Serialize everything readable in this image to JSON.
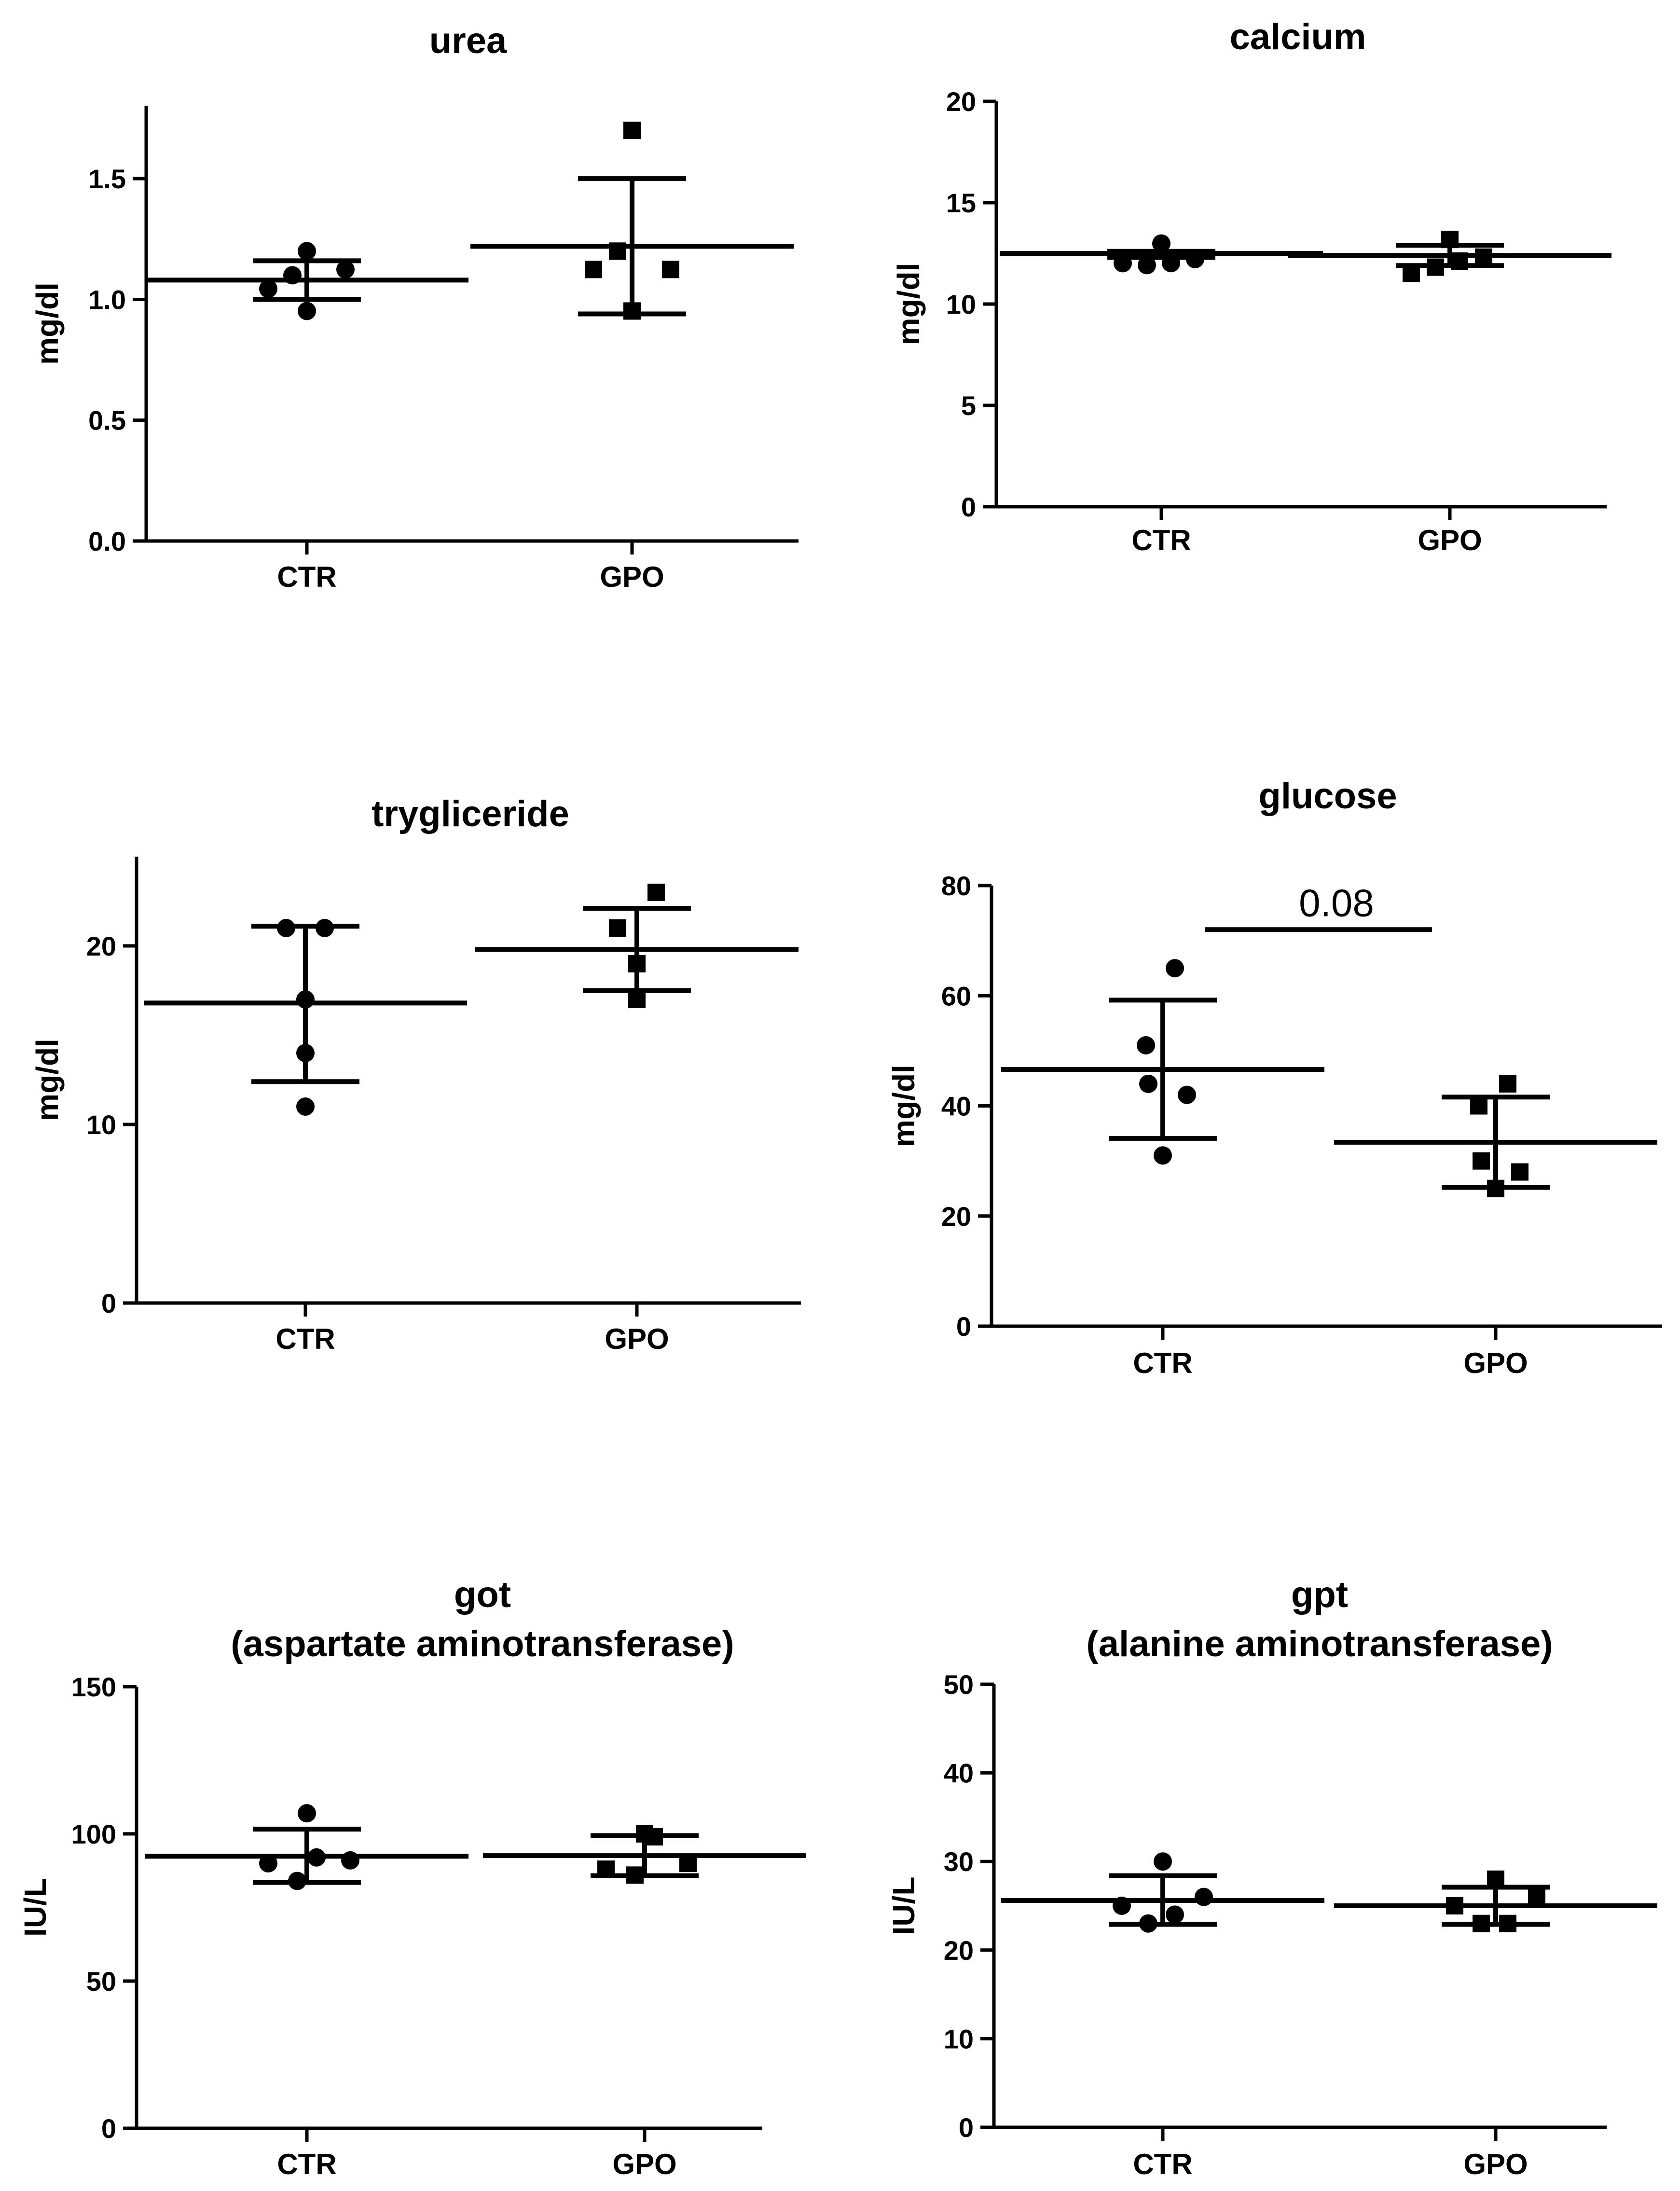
{
  "figure": {
    "background": "#ffffff",
    "marker_color": "#000000"
  },
  "chart_data": [
    {
      "type": "scatter",
      "title": "urea",
      "title_lines": [
        "urea"
      ],
      "ylabel": "mg/dl",
      "ylim": [
        0,
        1.8
      ],
      "yticks": [
        "0.0",
        "0.5",
        "1.0",
        "1.5"
      ],
      "ytick_values": [
        0,
        0.5,
        1.0,
        1.5
      ],
      "categories": [
        "CTR",
        "GPO"
      ],
      "series": [
        {
          "name": "CTR",
          "marker": "circle",
          "values": [
            1.0,
            1.02,
            1.1,
            1.1,
            1.2
          ],
          "mean": 1.08,
          "sd_low": 1.0,
          "sd_high": 1.16
        },
        {
          "name": "GPO",
          "marker": "square",
          "values": [
            1.0,
            1.1,
            1.1,
            1.2,
            1.7
          ],
          "mean": 1.22,
          "sd_low": 0.94,
          "sd_high": 1.5
        }
      ]
    },
    {
      "type": "scatter",
      "title": "calcium",
      "title_lines": [
        "calcium"
      ],
      "ylabel": "mg/dl",
      "ylim": [
        0,
        20
      ],
      "yticks": [
        "0",
        "5",
        "10",
        "15",
        "20"
      ],
      "ytick_values": [
        0,
        5,
        10,
        15,
        20
      ],
      "categories": [
        "CTR",
        "GPO"
      ],
      "series": [
        {
          "name": "CTR",
          "marker": "circle",
          "values": [
            12.3,
            12.3,
            12.4,
            12.5,
            12.7
          ],
          "mean": 12.5,
          "sd_low": 12.3,
          "sd_high": 12.6
        },
        {
          "name": "GPO",
          "marker": "square",
          "values": [
            11.8,
            12.2,
            12.5,
            12.6,
            12.9
          ],
          "mean": 12.4,
          "sd_low": 11.9,
          "sd_high": 12.9
        }
      ]
    },
    {
      "type": "scatter",
      "title": "trygliceride",
      "title_lines": [
        "trygliceride"
      ],
      "ylabel": "mg/dl",
      "ylim": [
        0,
        25
      ],
      "yticks": [
        "0",
        "10",
        "20"
      ],
      "ytick_values": [
        0,
        10,
        20
      ],
      "categories": [
        "CTR",
        "GPO"
      ],
      "series": [
        {
          "name": "CTR",
          "marker": "circle",
          "values": [
            11,
            14,
            17,
            21,
            21
          ],
          "mean": 16.8,
          "sd_low": 12.4,
          "sd_high": 21.1
        },
        {
          "name": "GPO",
          "marker": "square",
          "values": [
            17,
            19,
            19,
            21,
            23
          ],
          "mean": 19.8,
          "sd_low": 17.5,
          "sd_high": 22.1
        }
      ]
    },
    {
      "type": "scatter",
      "title": "glucose",
      "title_lines": [
        "glucose"
      ],
      "ylabel": "mg/dl",
      "ylim": [
        0,
        80
      ],
      "yticks": [
        "0",
        "20",
        "40",
        "60",
        "80"
      ],
      "ytick_values": [
        0,
        20,
        40,
        60,
        80
      ],
      "categories": [
        "CTR",
        "GPO"
      ],
      "annotation": {
        "text": "0.08",
        "y": 72
      },
      "series": [
        {
          "name": "CTR",
          "marker": "circle",
          "values": [
            31,
            42,
            44,
            51,
            65
          ],
          "mean": 46.6,
          "sd_low": 34.1,
          "sd_high": 59.2
        },
        {
          "name": "GPO",
          "marker": "square",
          "values": [
            25,
            28,
            30,
            40,
            44
          ],
          "mean": 33.4,
          "sd_low": 25.2,
          "sd_high": 41.6
        }
      ]
    },
    {
      "type": "scatter",
      "title": "got (aspartate aminotransferase)",
      "title_lines": [
        "got",
        "(aspartate aminotransferase)"
      ],
      "ylabel": "IU/L",
      "ylim": [
        0,
        150
      ],
      "yticks": [
        "0",
        "50",
        "100",
        "150"
      ],
      "ytick_values": [
        0,
        50,
        100,
        150
      ],
      "categories": [
        "CTR",
        "GPO"
      ],
      "series": [
        {
          "name": "CTR",
          "marker": "circle",
          "values": [
            84,
            90,
            91,
            92,
            107
          ],
          "mean": 92.4,
          "sd_low": 83.5,
          "sd_high": 101.6
        },
        {
          "name": "GPO",
          "marker": "square",
          "values": [
            86,
            88,
            90,
            99,
            100
          ],
          "mean": 92.6,
          "sd_low": 85.8,
          "sd_high": 99.4
        }
      ]
    },
    {
      "type": "scatter",
      "title": "gpt (alanine aminotransferase)",
      "title_lines": [
        "gpt",
        "(alanine aminotransferase)"
      ],
      "ylabel": "IU/L",
      "ylim": [
        0,
        50
      ],
      "yticks": [
        "0",
        "10",
        "20",
        "30",
        "40",
        "50"
      ],
      "ytick_values": [
        0,
        10,
        20,
        30,
        40,
        50
      ],
      "categories": [
        "CTR",
        "GPO"
      ],
      "series": [
        {
          "name": "CTR",
          "marker": "circle",
          "values": [
            23,
            24,
            25,
            26,
            30
          ],
          "mean": 25.6,
          "sd_low": 22.9,
          "sd_high": 28.4
        },
        {
          "name": "GPO",
          "marker": "square",
          "values": [
            23,
            23,
            25,
            26,
            28
          ],
          "mean": 25.0,
          "sd_low": 22.9,
          "sd_high": 27.1
        }
      ]
    }
  ]
}
